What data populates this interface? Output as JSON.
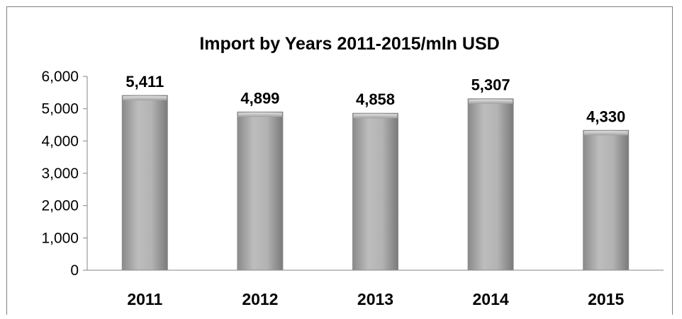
{
  "chart_data": {
    "type": "bar",
    "title": "Import by Years 2011-2015/mln USD",
    "xlabel": "",
    "ylabel": "",
    "categories": [
      "2011",
      "2012",
      "2013",
      "2014",
      "2015"
    ],
    "values": [
      5411,
      4899,
      4858,
      5307,
      4330
    ],
    "data_labels": [
      "5,411",
      "4,899",
      "4,858",
      "5,307",
      "4,330"
    ],
    "yticks": [
      0,
      1000,
      2000,
      3000,
      4000,
      5000,
      6000
    ],
    "ytick_labels": [
      "0",
      "1,000",
      "2,000",
      "3,000",
      "4,000",
      "5,000",
      "6,000"
    ],
    "ylim": [
      0,
      6000
    ],
    "grid": false,
    "legend": "none",
    "bar_color": "#a6a6a6",
    "bar_edge_color": "#8c8c8c"
  }
}
